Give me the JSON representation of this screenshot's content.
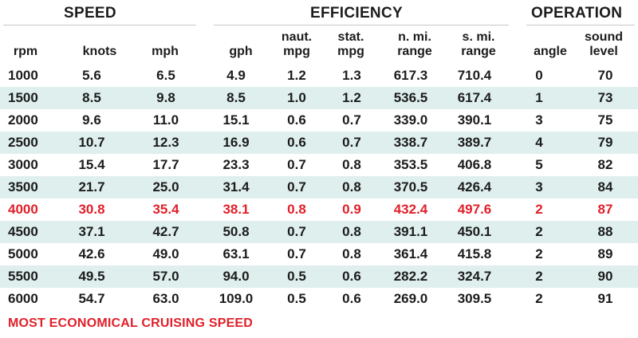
{
  "groups": {
    "speed": "SPEED",
    "efficiency": "EFFICIENCY",
    "operation": "OPERATION"
  },
  "columns": [
    "rpm",
    "knots",
    "mph",
    "gph",
    "naut.\nmpg",
    "stat.\nmpg",
    "n. mi.\nrange",
    "s. mi.\nrange",
    "angle",
    "sound\nlevel"
  ],
  "rows": [
    [
      "1000",
      "5.6",
      "6.5",
      "4.9",
      "1.2",
      "1.3",
      "617.3",
      "710.4",
      "0",
      "70"
    ],
    [
      "1500",
      "8.5",
      "9.8",
      "8.5",
      "1.0",
      "1.2",
      "536.5",
      "617.4",
      "1",
      "73"
    ],
    [
      "2000",
      "9.6",
      "11.0",
      "15.1",
      "0.6",
      "0.7",
      "339.0",
      "390.1",
      "3",
      "75"
    ],
    [
      "2500",
      "10.7",
      "12.3",
      "16.9",
      "0.6",
      "0.7",
      "338.7",
      "389.7",
      "4",
      "79"
    ],
    [
      "3000",
      "15.4",
      "17.7",
      "23.3",
      "0.7",
      "0.8",
      "353.5",
      "406.8",
      "5",
      "82"
    ],
    [
      "3500",
      "21.7",
      "25.0",
      "31.4",
      "0.7",
      "0.8",
      "370.5",
      "426.4",
      "3",
      "84"
    ],
    [
      "4000",
      "30.8",
      "35.4",
      "38.1",
      "0.8",
      "0.9",
      "432.4",
      "497.6",
      "2",
      "87"
    ],
    [
      "4500",
      "37.1",
      "42.7",
      "50.8",
      "0.7",
      "0.8",
      "391.1",
      "450.1",
      "2",
      "88"
    ],
    [
      "5000",
      "42.6",
      "49.0",
      "63.1",
      "0.7",
      "0.8",
      "361.4",
      "415.8",
      "2",
      "89"
    ],
    [
      "5500",
      "49.5",
      "57.0",
      "94.0",
      "0.5",
      "0.6",
      "282.2",
      "324.7",
      "2",
      "90"
    ],
    [
      "6000",
      "54.7",
      "63.0",
      "109.0",
      "0.5",
      "0.6",
      "269.0",
      "309.5",
      "2",
      "91"
    ]
  ],
  "highlight_row": 6,
  "highlight_color": "#e0202a",
  "stripe_color": "#deefed",
  "footnote": "MOST ECONOMICAL CRUISING SPEED"
}
